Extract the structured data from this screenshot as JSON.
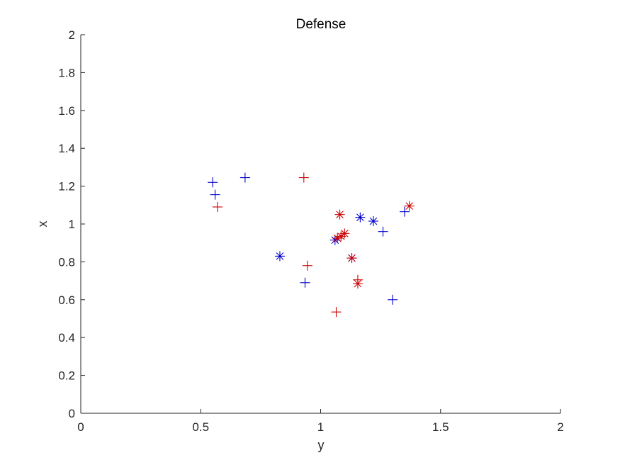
{
  "chart_data": {
    "type": "scatter",
    "title": "Defense",
    "xlabel": "y",
    "ylabel": "x",
    "xlim": [
      0,
      2
    ],
    "ylim": [
      0,
      2
    ],
    "xticks": [
      0,
      0.5,
      1,
      1.5,
      2
    ],
    "xtick_labels": [
      "0",
      "0.5",
      "1",
      "1.5",
      "2"
    ],
    "yticks": [
      0,
      0.2,
      0.4,
      0.6,
      0.8,
      1,
      1.2,
      1.4,
      1.6,
      1.8,
      2
    ],
    "ytick_labels": [
      "0",
      "0.2",
      "0.4",
      "0.6",
      "0.8",
      "1",
      "1.2",
      "1.4",
      "1.6",
      "1.8",
      "2"
    ],
    "grid": false,
    "legend": "none",
    "series": [
      {
        "marker": "plus",
        "color": "#0000cc",
        "points": [
          [
            0.55,
            1.22
          ],
          [
            0.56,
            1.155
          ],
          [
            0.685,
            1.245
          ],
          [
            0.935,
            0.69
          ],
          [
            1.26,
            0.96
          ],
          [
            1.3,
            0.6
          ],
          [
            1.35,
            1.065
          ]
        ]
      },
      {
        "marker": "star",
        "color": "#0000cc",
        "points": [
          [
            0.83,
            0.83
          ],
          [
            1.06,
            0.915
          ],
          [
            1.13,
            0.82
          ],
          [
            1.165,
            1.035
          ],
          [
            1.22,
            1.015
          ]
        ]
      },
      {
        "marker": "plus",
        "color": "#cc0000",
        "points": [
          [
            0.57,
            1.09
          ],
          [
            0.93,
            1.245
          ],
          [
            0.945,
            0.78
          ],
          [
            1.065,
            0.535
          ],
          [
            1.155,
            0.705
          ]
        ]
      },
      {
        "marker": "star",
        "color": "#cc0000",
        "points": [
          [
            1.07,
            0.925
          ],
          [
            1.08,
            1.05
          ],
          [
            1.085,
            0.935
          ],
          [
            1.1,
            0.95
          ],
          [
            1.13,
            0.82
          ],
          [
            1.155,
            0.685
          ],
          [
            1.37,
            1.095
          ]
        ]
      }
    ]
  }
}
